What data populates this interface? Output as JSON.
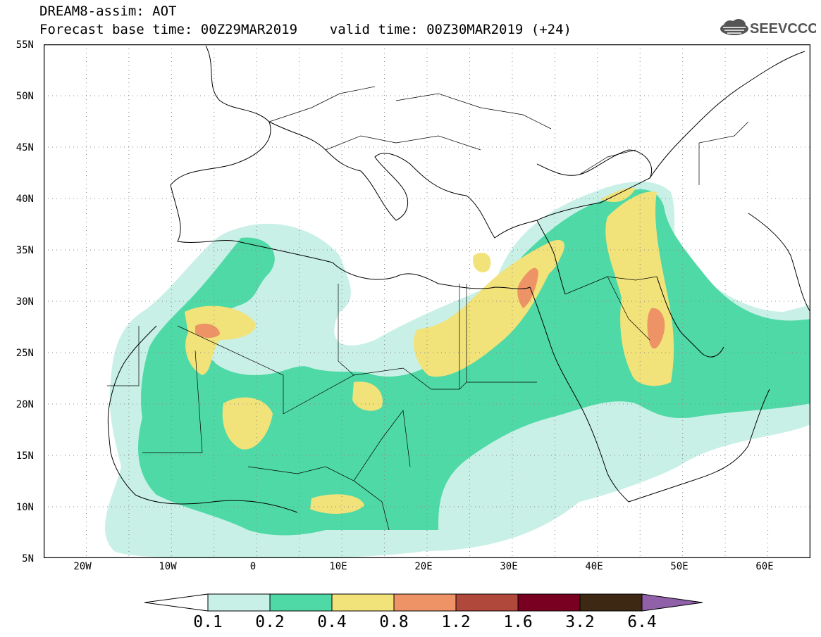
{
  "title_line1": "DREAM8-assim: AOT",
  "title_line2": "Forecast base time: 00Z29MAR2019    valid time: 00Z30MAR2019 (+24)",
  "logo_text": "SEEVCCC",
  "variable": "AOT",
  "model": "DREAM8-assim",
  "base_time": "00Z29MAR2019",
  "valid_time": "00Z30MAR2019",
  "forecast_hour": "+24",
  "map": {
    "lon_range": [
      -25,
      65
    ],
    "lat_range": [
      5,
      55
    ],
    "lat_labels": [
      "55N",
      "50N",
      "45N",
      "40N",
      "35N",
      "30N",
      "25N",
      "20N",
      "15N",
      "10N",
      "5N"
    ],
    "lon_labels": [
      "20W",
      "10W",
      "0",
      "10E",
      "20E",
      "30E",
      "40E",
      "50E",
      "60E"
    ],
    "gridlines": "dotted every 5 degrees"
  },
  "colorbar": {
    "labels": [
      "0.1",
      "0.2",
      "0.4",
      "0.8",
      "1.2",
      "1.6",
      "3.2",
      "6.4"
    ],
    "colors": [
      "#ffffff",
      "#c8f0e6",
      "#4fd9a6",
      "#f2e27a",
      "#ed9366",
      "#b0483c",
      "#7a0022",
      "#3d2814",
      "#9060a8"
    ]
  }
}
